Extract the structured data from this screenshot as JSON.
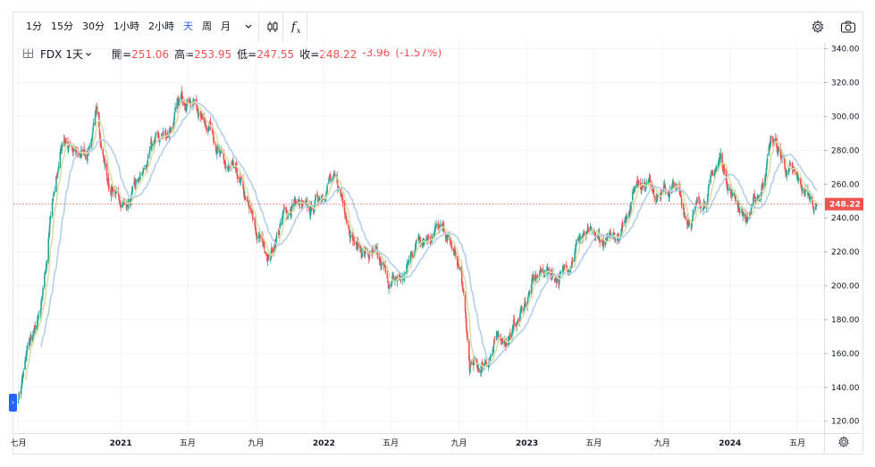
{
  "toolbar": {
    "intervals": [
      "1分",
      "15分",
      "30分",
      "1小時",
      "2小時",
      "天",
      "周",
      "月"
    ],
    "active_interval": "天",
    "dropdown_icon": "chevron-down-icon",
    "chart_type_icon": "candles-icon",
    "indicators_icon": "fx-icon",
    "settings_icon": "gear-icon",
    "snapshot_icon": "camera-icon"
  },
  "legend": {
    "symbol": "FDX",
    "interval": "1天",
    "open_label": "開=",
    "open": "251.06",
    "high_label": "高=",
    "high": "253.95",
    "low_label": "低=",
    "low": "247.55",
    "close_label": "收=",
    "close": "248.22",
    "change": "-3.96",
    "change_pct": "(-1.57%)"
  },
  "colors": {
    "up": "#26a69a",
    "down": "#ef5350",
    "ma_fast": "#d8e0a8",
    "ma_slow": "#b4d0e6",
    "last_price": "#ef5350",
    "grid": "#f0f3fa",
    "accent": "#2962ff"
  },
  "chart_data": {
    "type": "candlestick",
    "y_ticks": [
      "340.00",
      "320.00",
      "300.00",
      "280.00",
      "260.00",
      "240.00",
      "220.00",
      "200.00",
      "180.00",
      "160.00",
      "140.00",
      "120.00"
    ],
    "ylim": [
      113,
      344
    ],
    "x_ticks": [
      "七月",
      "2021",
      "五月",
      "九月",
      "2022",
      "五月",
      "九月",
      "2023",
      "五月",
      "九月",
      "2024",
      "五月"
    ],
    "last_price": "248.22",
    "path": [
      [
        "2020-07-01",
        135
      ],
      [
        "2020-07-20",
        165
      ],
      [
        "2020-08-10",
        180
      ],
      [
        "2020-08-31",
        250
      ],
      [
        "2020-09-20",
        290
      ],
      [
        "2020-10-10",
        275
      ],
      [
        "2020-11-01",
        280
      ],
      [
        "2020-11-20",
        300
      ],
      [
        "2020-12-10",
        260
      ],
      [
        "2020-12-31",
        250
      ],
      [
        "2021-01-20",
        250
      ],
      [
        "2021-02-10",
        265
      ],
      [
        "2021-03-05",
        285
      ],
      [
        "2021-03-25",
        290
      ],
      [
        "2021-04-15",
        305
      ],
      [
        "2021-05-05",
        315
      ],
      [
        "2021-05-25",
        300
      ],
      [
        "2021-06-15",
        295
      ],
      [
        "2021-07-05",
        270
      ],
      [
        "2021-08-01",
        260
      ],
      [
        "2021-09-01",
        230
      ],
      [
        "2021-09-25",
        218
      ],
      [
        "2021-10-20",
        240
      ],
      [
        "2021-11-10",
        250
      ],
      [
        "2021-12-05",
        240
      ],
      [
        "2022-01-10",
        265
      ],
      [
        "2022-02-05",
        250
      ],
      [
        "2022-03-01",
        225
      ],
      [
        "2022-04-01",
        215
      ],
      [
        "2022-05-01",
        200
      ],
      [
        "2022-05-25",
        205
      ],
      [
        "2022-06-20",
        230
      ],
      [
        "2022-07-20",
        235
      ],
      [
        "2022-08-15",
        225
      ],
      [
        "2022-09-05",
        205
      ],
      [
        "2022-09-20",
        150
      ],
      [
        "2022-10-10",
        152
      ],
      [
        "2022-11-05",
        165
      ],
      [
        "2022-12-10",
        175
      ],
      [
        "2023-01-10",
        200
      ],
      [
        "2023-02-05",
        210
      ],
      [
        "2023-03-05",
        205
      ],
      [
        "2023-04-05",
        230
      ],
      [
        "2023-05-05",
        225
      ],
      [
        "2023-06-01",
        225
      ],
      [
        "2023-06-25",
        240
      ],
      [
        "2023-07-20",
        265
      ],
      [
        "2023-08-10",
        262
      ],
      [
        "2023-09-01",
        255
      ],
      [
        "2023-09-25",
        258
      ],
      [
        "2023-10-15",
        240
      ],
      [
        "2023-11-01",
        245
      ],
      [
        "2023-11-20",
        255
      ],
      [
        "2023-12-15",
        275
      ],
      [
        "2024-01-05",
        255
      ],
      [
        "2024-02-01",
        240
      ],
      [
        "2024-02-25",
        255
      ],
      [
        "2024-03-15",
        288
      ],
      [
        "2024-04-10",
        270
      ],
      [
        "2024-05-05",
        258
      ],
      [
        "2024-06-05",
        248
      ]
    ]
  }
}
